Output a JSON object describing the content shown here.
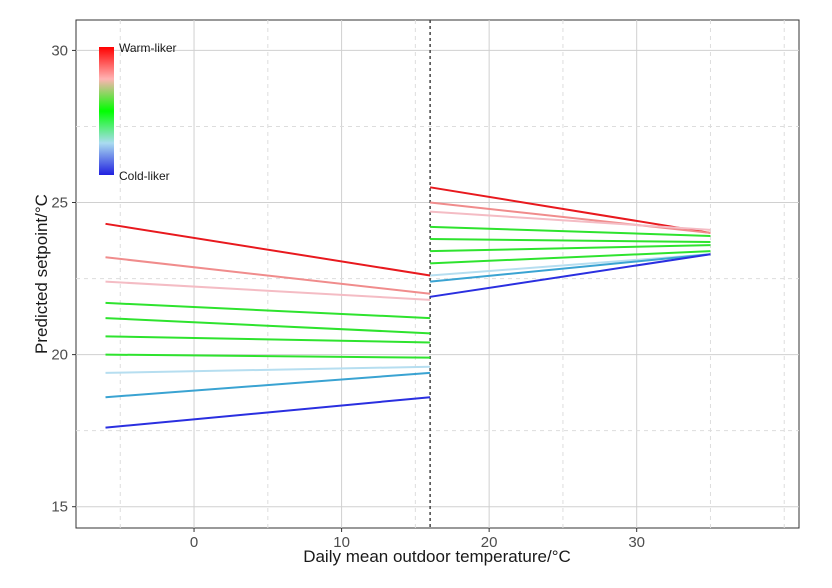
{
  "chart_data": {
    "type": "line",
    "xlabel": "Daily mean outdoor temperature/°C",
    "ylabel": "Predicted setpoint/°C",
    "xlim": [
      -8,
      41
    ],
    "ylim": [
      14.3,
      31.0
    ],
    "x_ticks": [
      0,
      10,
      20,
      30
    ],
    "y_ticks": [
      15,
      20,
      25,
      30
    ],
    "breakpoint_x": 16,
    "grid": true,
    "legend": {
      "position": "top-left",
      "type": "colorbar",
      "top_label": "Warm-liker",
      "bottom_label": "Cold-liker",
      "gradient": [
        "#ff0000",
        "#ffb3b3",
        "#00ff00",
        "#aadcf0",
        "#2020e0"
      ]
    },
    "series": [
      {
        "color": "#e8191e",
        "segments": [
          {
            "x": [
              -6,
              16
            ],
            "y": [
              24.3,
              22.6
            ]
          },
          {
            "x": [
              16,
              35
            ],
            "y": [
              25.5,
              24.0
            ]
          }
        ]
      },
      {
        "color": "#f08c8c",
        "segments": [
          {
            "x": [
              -6,
              16
            ],
            "y": [
              23.2,
              22.0
            ]
          },
          {
            "x": [
              16,
              35
            ],
            "y": [
              25.0,
              24.0
            ]
          }
        ]
      },
      {
        "color": "#f4bcc4",
        "segments": [
          {
            "x": [
              -6,
              16
            ],
            "y": [
              22.4,
              21.8
            ]
          },
          {
            "x": [
              16,
              35
            ],
            "y": [
              24.7,
              24.1
            ]
          }
        ]
      },
      {
        "color": "#2ee32e",
        "segments": [
          {
            "x": [
              -6,
              16
            ],
            "y": [
              21.7,
              21.2
            ]
          },
          {
            "x": [
              16,
              35
            ],
            "y": [
              24.2,
              23.9
            ]
          }
        ]
      },
      {
        "color": "#2ee32e",
        "segments": [
          {
            "x": [
              -6,
              16
            ],
            "y": [
              21.2,
              20.7
            ]
          },
          {
            "x": [
              16,
              35
            ],
            "y": [
              23.8,
              23.7
            ]
          }
        ]
      },
      {
        "color": "#2ee32e",
        "segments": [
          {
            "x": [
              -6,
              16
            ],
            "y": [
              20.6,
              20.4
            ]
          },
          {
            "x": [
              16,
              35
            ],
            "y": [
              23.4,
              23.6
            ]
          }
        ]
      },
      {
        "color": "#2ee32e",
        "segments": [
          {
            "x": [
              -6,
              16
            ],
            "y": [
              20.0,
              19.9
            ]
          },
          {
            "x": [
              16,
              35
            ],
            "y": [
              23.0,
              23.4
            ]
          }
        ]
      },
      {
        "color": "#b6def0",
        "segments": [
          {
            "x": [
              -6,
              16
            ],
            "y": [
              19.4,
              19.6
            ]
          },
          {
            "x": [
              16,
              35
            ],
            "y": [
              22.6,
              23.3
            ]
          }
        ]
      },
      {
        "color": "#3aa3d2",
        "segments": [
          {
            "x": [
              -6,
              16
            ],
            "y": [
              18.6,
              19.4
            ]
          },
          {
            "x": [
              16,
              35
            ],
            "y": [
              22.4,
              23.3
            ]
          }
        ]
      },
      {
        "color": "#2a2fe0",
        "segments": [
          {
            "x": [
              -6,
              16
            ],
            "y": [
              17.6,
              18.6
            ]
          },
          {
            "x": [
              16,
              35
            ],
            "y": [
              21.9,
              23.3
            ]
          }
        ]
      }
    ]
  }
}
